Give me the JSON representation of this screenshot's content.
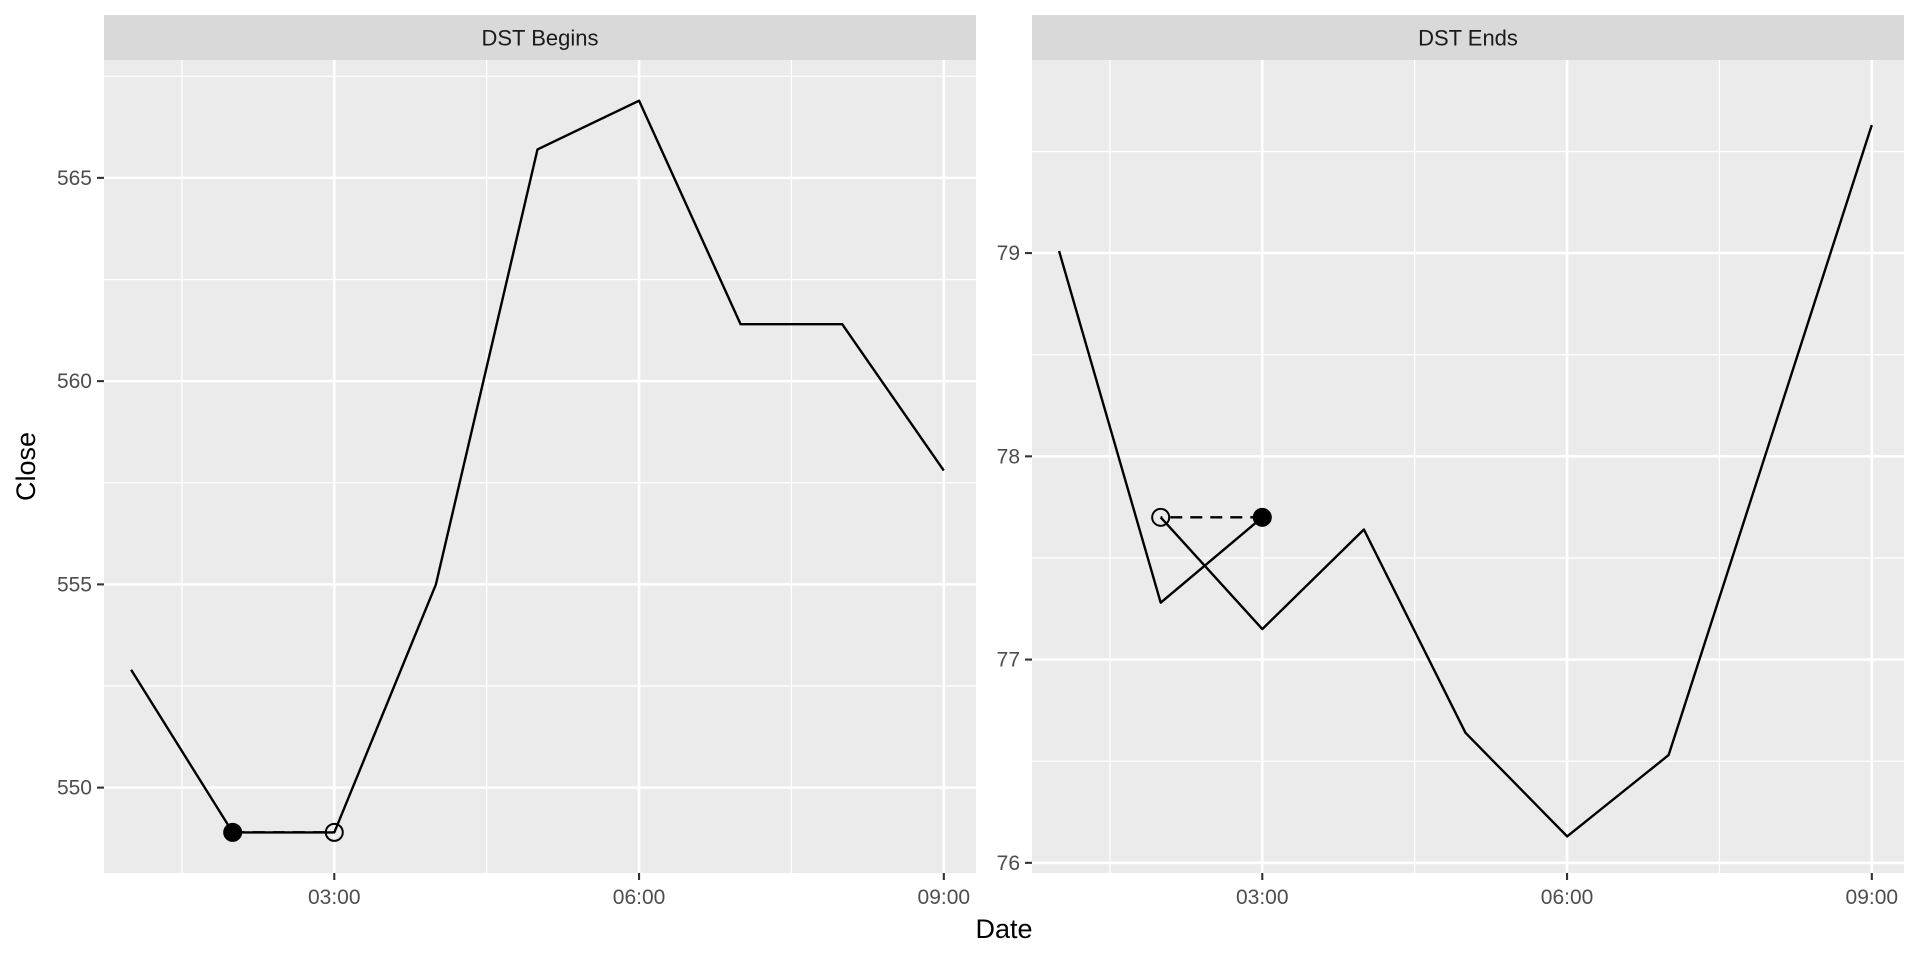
{
  "chart_data": {
    "type": "line",
    "xlabel": "Date",
    "ylabel": "Close",
    "panels": [
      {
        "title": "DST Begins",
        "xlim": [
          "00:44",
          "09:19"
        ],
        "ylim": [
          547.9,
          567.9
        ],
        "x_ticks": [
          "03:00",
          "06:00",
          "09:00"
        ],
        "y_ticks": [
          550,
          555,
          560,
          565
        ],
        "series": [
          {
            "x": [
              "01:00",
              "02:00",
              "03:00",
              "04:00",
              "05:00",
              "06:00",
              "07:00",
              "08:00",
              "09:00"
            ],
            "y": [
              552.9,
              548.9,
              548.9,
              555.0,
              565.7,
              566.9,
              561.4,
              561.4,
              557.8
            ]
          }
        ],
        "gap": {
          "from": {
            "x": "02:00",
            "y": 548.9,
            "marker": "filled"
          },
          "to": {
            "x": "03:00",
            "y": 548.9,
            "marker": "open"
          }
        }
      },
      {
        "title": "DST Ends",
        "xlim": [
          "00:44",
          "09:19"
        ],
        "ylim": [
          75.95,
          79.95
        ],
        "x_ticks": [
          "03:00",
          "06:00",
          "09:00"
        ],
        "y_ticks": [
          76,
          77,
          78,
          79
        ],
        "series": [
          {
            "x": [
              "01:00",
              "02:00",
              "03:00"
            ],
            "y": [
              79.01,
              77.28,
              77.7
            ]
          },
          {
            "x": [
              "02:00",
              "03:00",
              "04:00",
              "05:00",
              "06:00",
              "07:00",
              "09:00"
            ],
            "y": [
              77.7,
              77.15,
              77.64,
              76.64,
              76.13,
              76.53,
              79.63
            ]
          }
        ],
        "gap": {
          "from": {
            "x": "03:00",
            "y": 77.7,
            "marker": "filled"
          },
          "to": {
            "x": "02:00",
            "y": 77.7,
            "marker": "open"
          }
        }
      }
    ]
  }
}
